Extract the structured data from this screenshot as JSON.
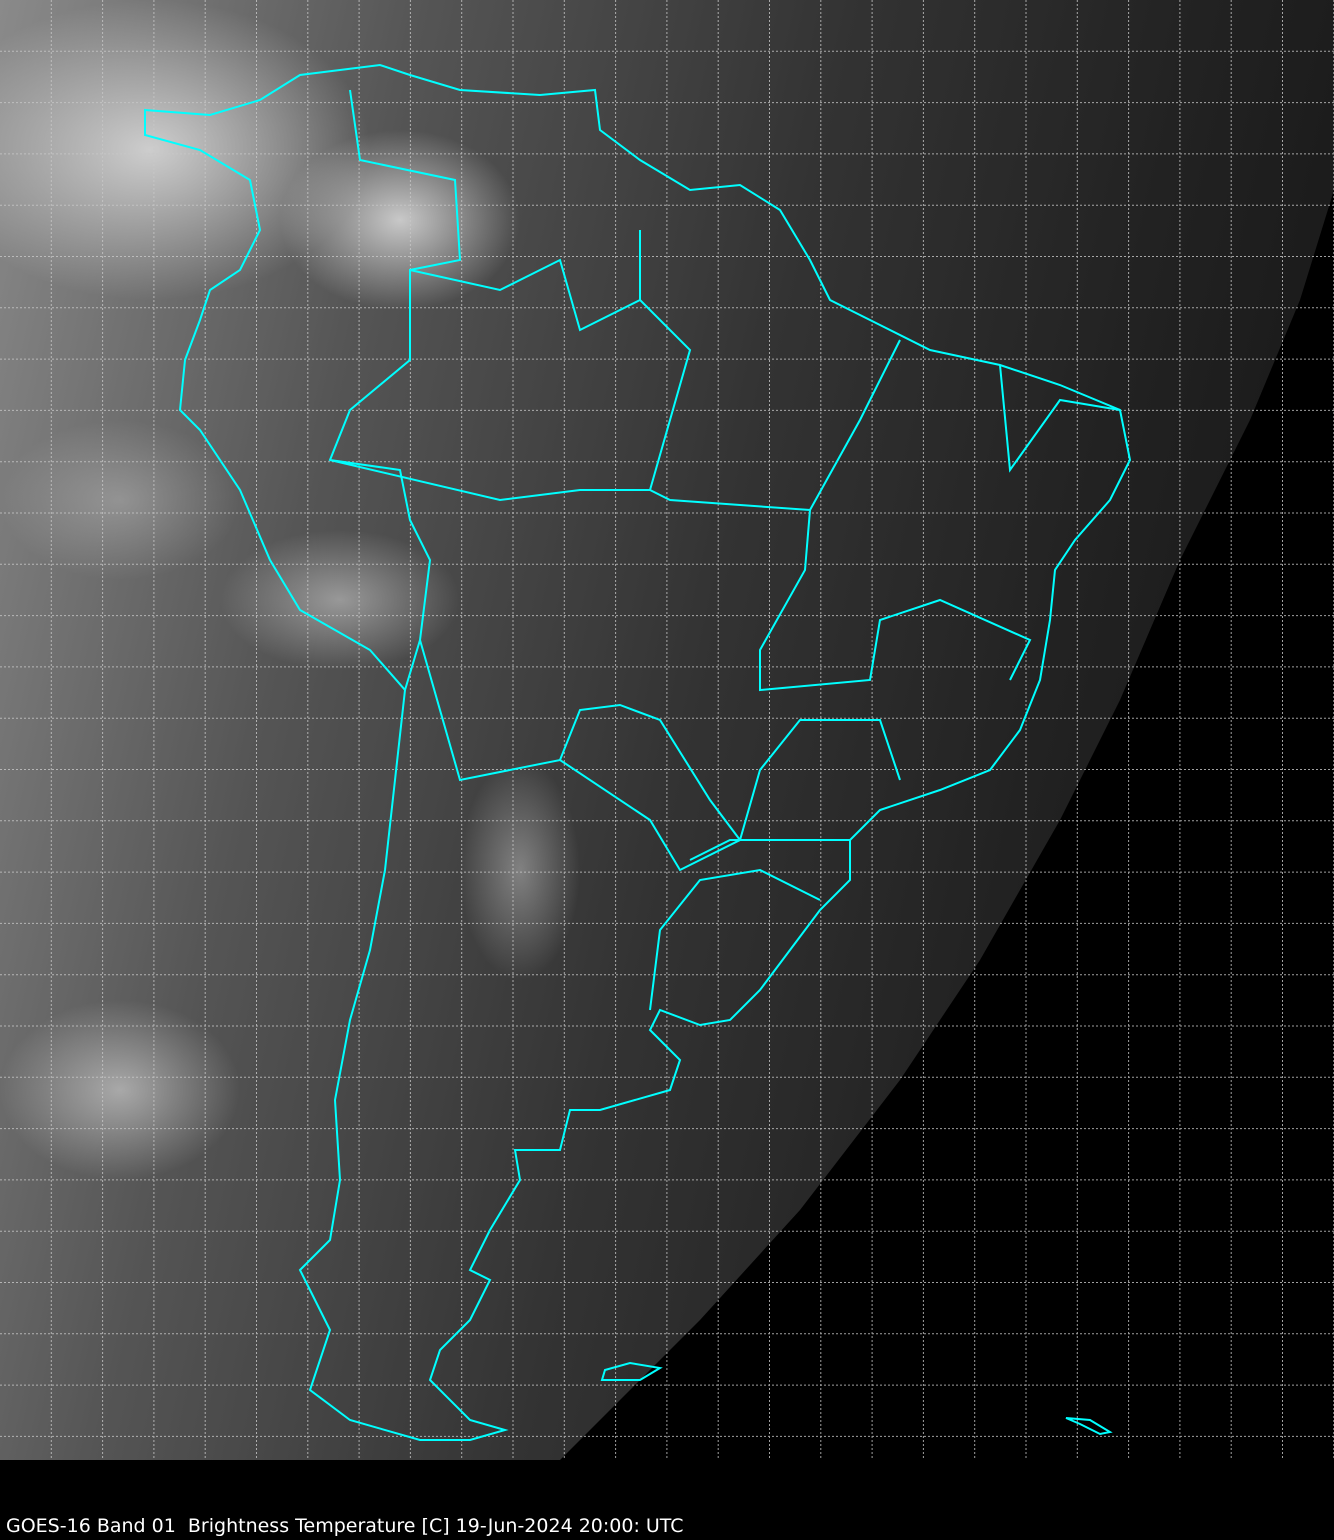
{
  "caption": "GOES-16 Band 01  Brightness Temperature [C] 19-Jun-2024 20:00: UTC",
  "map": {
    "imagery": "satellite visible band, grayscale",
    "region": "South America",
    "border_color": "#00ffff",
    "grid_color": "#c8c8c8",
    "grid_style": "dashed"
  }
}
